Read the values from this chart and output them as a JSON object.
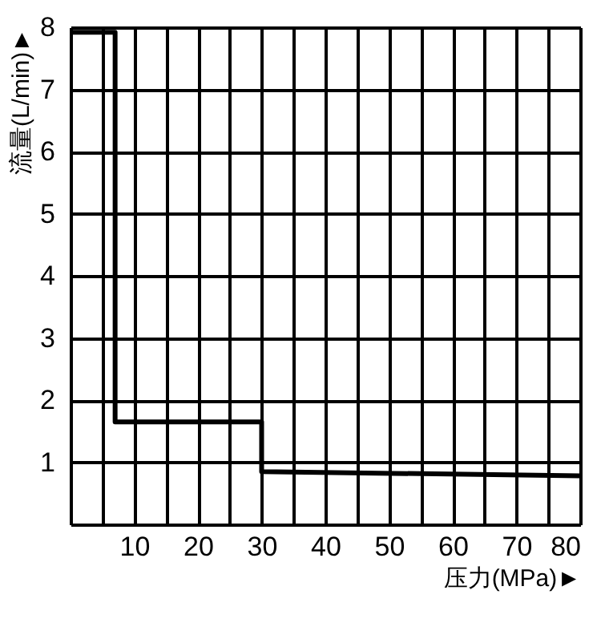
{
  "chart_data": {
    "type": "line",
    "xlabel": "压力(MPa)►",
    "ylabel": "流量(L/min)►",
    "x": [
      0,
      7,
      7,
      30,
      30,
      80
    ],
    "series": [
      {
        "color": "#000000",
        "values": [
          7.92,
          7.92,
          1.65,
          1.65,
          0.85,
          0.78
        ]
      }
    ],
    "xlim": [
      0,
      80
    ],
    "ylim": [
      0,
      8
    ],
    "xticks": [
      {
        "value": 0,
        "label": null
      },
      {
        "value": 5,
        "label": null
      },
      10,
      {
        "value": 15,
        "label": null
      },
      20,
      {
        "value": 25,
        "label": null
      },
      30,
      {
        "value": 35,
        "label": null
      },
      40,
      {
        "value": 45,
        "label": null
      },
      50,
      {
        "value": 55,
        "label": null
      },
      60,
      {
        "value": 65,
        "label": null
      },
      70,
      {
        "value": 75,
        "label": null
      },
      80
    ],
    "yticks": [
      {
        "value": 0,
        "label": null
      },
      1,
      2,
      3,
      4,
      5,
      6,
      7,
      8
    ],
    "grid": true,
    "marker": "none",
    "line_style": "solid"
  }
}
